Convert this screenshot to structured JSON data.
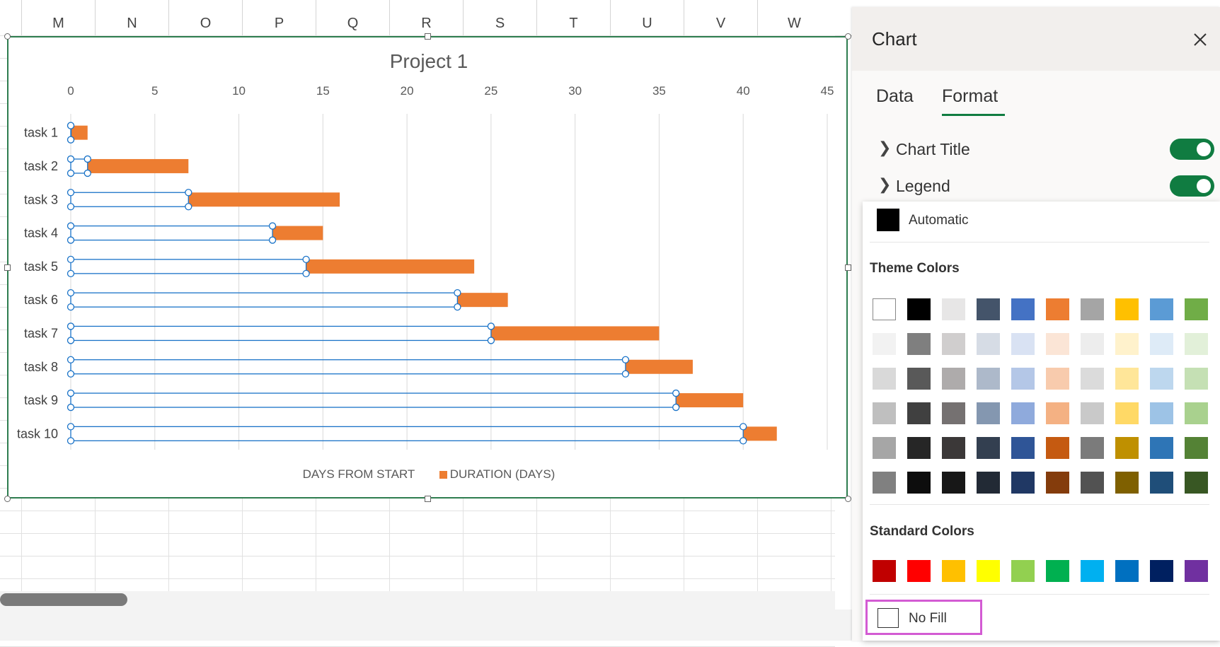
{
  "sheet": {
    "columns": [
      "M",
      "N",
      "O",
      "P",
      "Q",
      "R",
      "S",
      "T",
      "U",
      "V",
      "W"
    ]
  },
  "chart_data": {
    "type": "bar",
    "title": "Project 1",
    "categories": [
      "task 1",
      "task 2",
      "task 3",
      "task 4",
      "task 5",
      "task 6",
      "task 7",
      "task 8",
      "task 9",
      "task 10"
    ],
    "series": [
      {
        "name": "DAYS FROM START",
        "values": [
          0,
          1,
          7,
          12,
          14,
          23,
          25,
          33,
          36,
          40
        ],
        "fill": "none",
        "selected": true
      },
      {
        "name": "DURATION (DAYS)",
        "values": [
          1,
          6,
          9,
          3,
          10,
          3,
          10,
          4,
          4,
          2
        ],
        "fill": "#ed7d31"
      }
    ],
    "stacked": true,
    "orientation": "horizontal",
    "xlim": [
      0,
      45
    ],
    "xticks": [
      "0",
      "5",
      "10",
      "15",
      "20",
      "25",
      "30",
      "35",
      "40",
      "45"
    ],
    "x_axis_position": "top",
    "grid": true,
    "legend_position": "bottom"
  },
  "pane": {
    "title": "Chart",
    "close_icon": "close-icon",
    "tabs": [
      {
        "label": "Data",
        "active": false
      },
      {
        "label": "Format",
        "active": true
      }
    ],
    "sections": [
      {
        "label": "Chart Title",
        "toggle": true
      },
      {
        "label": "Legend",
        "toggle": true
      }
    ]
  },
  "color_menu": {
    "automatic_label": "Automatic",
    "theme_heading": "Theme Colors",
    "standard_heading": "Standard Colors",
    "no_fill_label": "No Fill",
    "theme_colors": [
      [
        "#ffffff",
        "#000000",
        "#e7e6e6",
        "#44546a",
        "#4472c4",
        "#ed7d31",
        "#a5a5a5",
        "#ffc000",
        "#5b9bd5",
        "#70ad47"
      ],
      [
        "#f2f2f2",
        "#7f7f7f",
        "#d0cece",
        "#d6dce5",
        "#d9e2f3",
        "#fbe5d6",
        "#ededed",
        "#fff2cc",
        "#deebf7",
        "#e2f0d9"
      ],
      [
        "#d9d9d9",
        "#595959",
        "#aeabab",
        "#adb9ca",
        "#b4c7e7",
        "#f8cbad",
        "#dbdbdb",
        "#ffe699",
        "#bdd7ee",
        "#c5e0b4"
      ],
      [
        "#bfbfbf",
        "#404040",
        "#757171",
        "#8497b0",
        "#8faadc",
        "#f4b183",
        "#c9c9c9",
        "#ffd966",
        "#9dc3e6",
        "#a9d18e"
      ],
      [
        "#a6a6a6",
        "#262626",
        "#3b3838",
        "#333f50",
        "#2f5597",
        "#c55a11",
        "#7b7b7b",
        "#bf9000",
        "#2e75b6",
        "#548235"
      ],
      [
        "#808080",
        "#0d0d0d",
        "#171717",
        "#222a35",
        "#203864",
        "#843c0c",
        "#525252",
        "#7f6000",
        "#1f4e79",
        "#385723"
      ]
    ],
    "standard_colors": [
      "#c00000",
      "#ff0000",
      "#ffc000",
      "#ffff00",
      "#92d050",
      "#00b050",
      "#00b0f0",
      "#0070c0",
      "#002060",
      "#7030a0"
    ]
  },
  "colors": {
    "accent_green": "#107c41",
    "highlight_magenta": "#d35bd3",
    "selection_blue": "#1a73c8"
  }
}
